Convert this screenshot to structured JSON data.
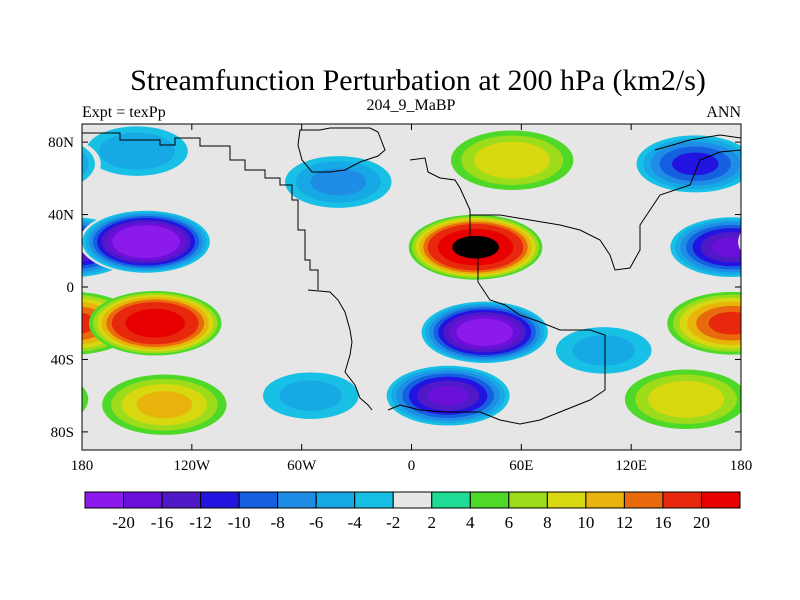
{
  "chart_data": {
    "type": "heatmap",
    "title": "Streamfunction Perturbation at 200 hPa (km2/s)",
    "left_string": "Expt = texPp",
    "center_string": "204_9_MaBP",
    "right_string": "ANN",
    "x_ticks": [
      {
        "value": -180,
        "label": "180"
      },
      {
        "value": -120,
        "label": "120W"
      },
      {
        "value": -60,
        "label": "60W"
      },
      {
        "value": 0,
        "label": "0"
      },
      {
        "value": 60,
        "label": "60E"
      },
      {
        "value": 120,
        "label": "120E"
      },
      {
        "value": 180,
        "label": "180"
      }
    ],
    "y_ticks": [
      {
        "value": 80,
        "label": "80N"
      },
      {
        "value": 40,
        "label": "40N"
      },
      {
        "value": 0,
        "label": "0"
      },
      {
        "value": -40,
        "label": "40S"
      },
      {
        "value": -80,
        "label": "80S"
      }
    ],
    "xlim": [
      -180,
      180
    ],
    "ylim": [
      -90,
      90
    ],
    "levels": [
      -20,
      -18,
      -16,
      -14,
      -12,
      -10,
      -8,
      -6,
      -4,
      -2,
      2,
      4,
      6,
      8,
      10,
      12,
      16,
      20
    ],
    "level_labels": [
      "-20",
      "-16",
      "-12",
      "-10",
      "-8",
      "-6",
      "-4",
      "-2",
      "2",
      "4",
      "6",
      "8",
      "10",
      "12",
      "16",
      "20"
    ],
    "colors": [
      "#8c1aea",
      "#6a10d8",
      "#5019c8",
      "#2313e0",
      "#1560e0",
      "#1f8ce6",
      "#17a8e6",
      "#17c0e4",
      "#e6e6e6",
      "#1edc96",
      "#4ed828",
      "#9ddc1a",
      "#d8d810",
      "#e8b40c",
      "#e86a0c",
      "#e8280c",
      "#e80000"
    ],
    "anomalies": [
      {
        "lon": -145,
        "lat": 25,
        "amplitude": -22
      },
      {
        "lon": -40,
        "lat": 58,
        "amplitude": -8
      },
      {
        "lon": 175,
        "lat": 22,
        "amplitude": -16
      },
      {
        "lon": 155,
        "lat": 68,
        "amplitude": -12
      },
      {
        "lon": -150,
        "lat": 75,
        "amplitude": -7
      },
      {
        "lon": 35,
        "lat": 22,
        "amplitude": 21
      },
      {
        "lon": 55,
        "lat": 70,
        "amplitude": 7
      },
      {
        "lon": -140,
        "lat": -20,
        "amplitude": 18
      },
      {
        "lon": 175,
        "lat": -20,
        "amplitude": 12
      },
      {
        "lon": -135,
        "lat": -65,
        "amplitude": 8
      },
      {
        "lon": 150,
        "lat": -62,
        "amplitude": 7
      },
      {
        "lon": 40,
        "lat": -25,
        "amplitude": -20
      },
      {
        "lon": 20,
        "lat": -60,
        "amplitude": -16
      },
      {
        "lon": -55,
        "lat": -60,
        "amplitude": -6
      },
      {
        "lon": 105,
        "lat": -35,
        "amplitude": -6
      }
    ]
  }
}
